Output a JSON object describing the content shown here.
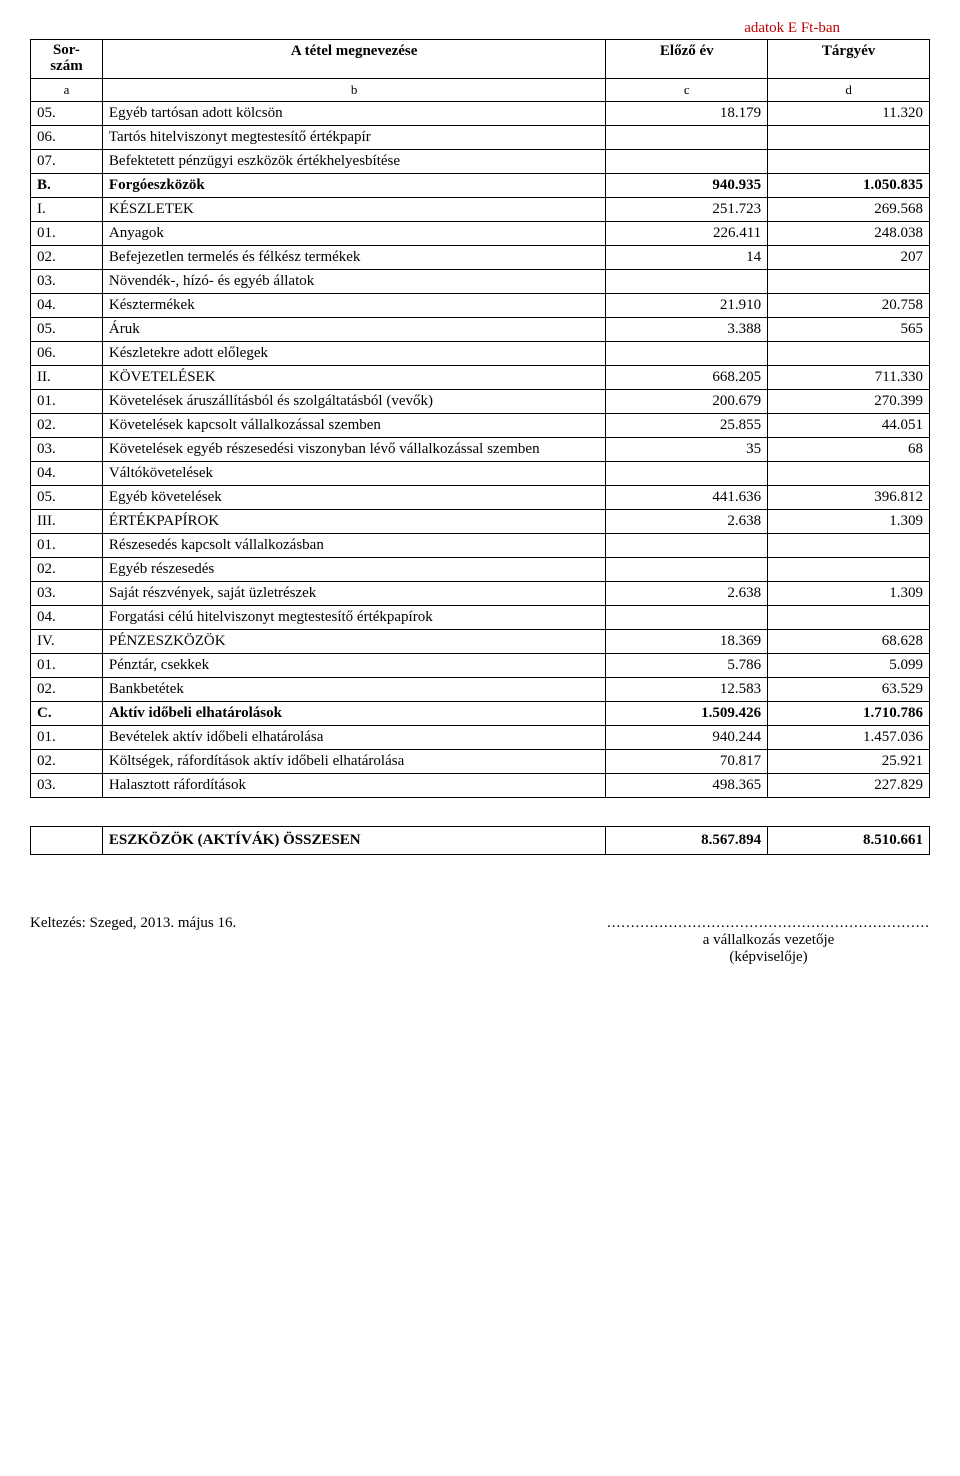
{
  "unit_label": "adatok E Ft-ban",
  "header": {
    "c1a": "Sor-",
    "c1b": "szám",
    "c2": "A tétel megnevezése",
    "c3": "Előző év",
    "c4": "Tárgyév"
  },
  "subheader": {
    "c1": "a",
    "c2": "b",
    "c3": "c",
    "c4": "d"
  },
  "rows": [
    {
      "n": "05.",
      "t": "Egyéb tartósan adott kölcsön",
      "p": "18.179",
      "c": "11.320"
    },
    {
      "n": "06.",
      "t": "Tartós hitelviszonyt megtestesítő értékpapír",
      "p": "",
      "c": ""
    },
    {
      "n": "07.",
      "t": "Befektetett pénzügyi eszközök értékhelyesbítése",
      "p": "",
      "c": ""
    },
    {
      "n": "B.",
      "t": "Forgóeszközök",
      "p": "940.935",
      "c": "1.050.835",
      "bold": true
    },
    {
      "n": "I.",
      "t": "KÉSZLETEK",
      "p": "251.723",
      "c": "269.568"
    },
    {
      "n": "01.",
      "t": "Anyagok",
      "p": "226.411",
      "c": "248.038"
    },
    {
      "n": "02.",
      "t": "Befejezetlen termelés és félkész termékek",
      "p": "14",
      "c": "207"
    },
    {
      "n": "03.",
      "t": "Növendék-, hízó- és egyéb állatok",
      "p": "",
      "c": ""
    },
    {
      "n": "04.",
      "t": "Késztermékek",
      "p": "21.910",
      "c": "20.758"
    },
    {
      "n": "05.",
      "t": "Áruk",
      "p": "3.388",
      "c": "565"
    },
    {
      "n": "06.",
      "t": "Készletekre adott előlegek",
      "p": "",
      "c": ""
    },
    {
      "n": "II.",
      "t": "KÖVETELÉSEK",
      "p": "668.205",
      "c": "711.330"
    },
    {
      "n": "01.",
      "t": "Követelések áruszállításból és szolgáltatásból (vevők)",
      "p": "200.679",
      "c": "270.399"
    },
    {
      "n": "02.",
      "t": "Követelések kapcsolt vállalkozással szemben",
      "p": "25.855",
      "c": "44.051"
    },
    {
      "n": "03.",
      "t": "Követelések egyéb részesedési viszonyban lévő vállalkozással szemben",
      "p": "35",
      "c": "68"
    },
    {
      "n": "04.",
      "t": "Váltókövetelések",
      "p": "",
      "c": ""
    },
    {
      "n": "05.",
      "t": "Egyéb követelések",
      "p": "441.636",
      "c": "396.812"
    },
    {
      "n": "III.",
      "t": "ÉRTÉKPAPÍROK",
      "p": "2.638",
      "c": "1.309"
    },
    {
      "n": "01.",
      "t": "Részesedés kapcsolt vállalkozásban",
      "p": "",
      "c": ""
    },
    {
      "n": "02.",
      "t": "Egyéb részesedés",
      "p": "",
      "c": ""
    },
    {
      "n": "03.",
      "t": "Saját részvények, saját üzletrészek",
      "p": "2.638",
      "c": "1.309"
    },
    {
      "n": "04.",
      "t": "Forgatási célú hitelviszonyt megtestesítő értékpapírok",
      "p": "",
      "c": ""
    },
    {
      "n": "IV.",
      "t": "PÉNZESZKÖZÖK",
      "p": "18.369",
      "c": "68.628"
    },
    {
      "n": "01.",
      "t": "Pénztár, csekkek",
      "p": "5.786",
      "c": "5.099"
    },
    {
      "n": "02.",
      "t": "Bankbetétek",
      "p": "12.583",
      "c": "63.529"
    },
    {
      "n": "C.",
      "t": "Aktív időbeli elhatárolások",
      "p": "1.509.426",
      "c": "1.710.786",
      "bold": true
    },
    {
      "n": "01.",
      "t": "Bevételek aktív időbeli elhatárolása",
      "p": "940.244",
      "c": "1.457.036"
    },
    {
      "n": "02.",
      "t": "Költségek, ráfordítások aktív időbeli elhatárolása",
      "p": "70.817",
      "c": "25.921"
    },
    {
      "n": "03.",
      "t": "Halasztott ráfordítások",
      "p": "498.365",
      "c": "227.829"
    }
  ],
  "total": {
    "t": "ESZKÖZÖK (AKTÍVÁK) ÖSSZESEN",
    "p": "8.567.894",
    "c": "8.510.661"
  },
  "footer": {
    "date": "Keltezés: Szeged, 2013. május 16.",
    "sig_line": "....................................................................",
    "sig1": "a vállalkozás vezetője",
    "sig2": "(képviselője)"
  },
  "style": {
    "unit_color": "#c00000",
    "font_family": "Times New Roman",
    "base_font_size": 15
  }
}
